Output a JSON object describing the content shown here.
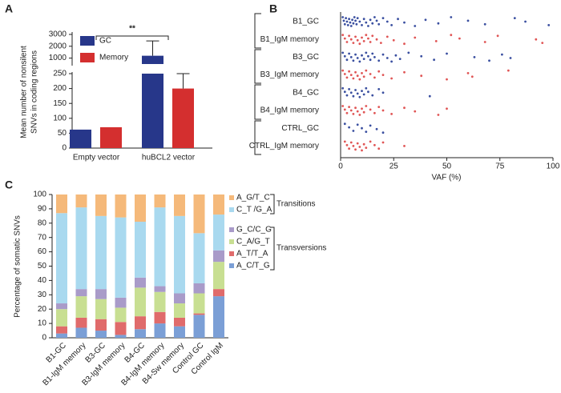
{
  "chart_data": [
    {
      "type": "broken-bar",
      "panel": "A",
      "ylabel": [
        "Mean number of nonsilent",
        "SNVs in coding regions"
      ],
      "categories": [
        "Empty vector",
        "huBCL2 vector"
      ],
      "series": [
        {
          "name": "GC",
          "color": "#27378a",
          "values": [
            62,
            1200
          ],
          "errors": [
            null,
            1250
          ]
        },
        {
          "name": "Memory",
          "color": "#d42f2f",
          "values": [
            70,
            200
          ],
          "errors": [
            null,
            50
          ]
        }
      ],
      "ylim": [
        0,
        3000
      ],
      "ybreak": [
        250,
        500
      ],
      "yticks": [
        0,
        50,
        100,
        150,
        200,
        250,
        1000,
        2000,
        3000
      ],
      "annotation": "**"
    },
    {
      "type": "strip",
      "panel": "B",
      "xlabel": "VAF (%)",
      "categories": [
        "B1_GC",
        "B1_IgM memory",
        "B3_GC",
        "B3_IgM memory",
        "B4_GC",
        "B4_IgM memory",
        "CTRL_GC",
        "CTRL_IgM memory"
      ],
      "colors": [
        "#3a4fa0",
        "#e05555",
        "#3a4fa0",
        "#e05555",
        "#3a4fa0",
        "#e05555",
        "#3a4fa0",
        "#e05555"
      ],
      "values": [
        [
          1,
          1.5,
          2,
          2.5,
          3,
          3.5,
          4,
          4.5,
          5,
          5.5,
          6,
          6.5,
          7,
          7.5,
          8,
          9,
          10,
          11,
          12,
          13,
          14,
          15,
          16,
          17,
          18,
          20,
          22,
          24,
          27,
          30,
          35,
          40,
          46,
          52,
          60,
          68,
          82,
          87,
          98
        ],
        [
          1,
          2,
          3,
          4,
          5,
          6,
          7,
          8,
          9,
          10,
          11,
          12,
          13,
          14,
          15,
          17,
          19,
          22,
          25,
          30,
          35,
          45,
          52,
          56,
          68,
          74,
          92,
          95
        ],
        [
          1,
          2,
          3,
          4,
          5,
          6,
          7,
          8,
          9,
          10,
          11,
          12,
          13,
          14,
          15,
          16,
          18,
          20,
          22,
          24,
          26,
          28,
          32,
          38,
          44,
          50,
          63,
          70,
          76,
          80
        ],
        [
          1,
          2,
          3,
          4,
          5,
          6,
          7,
          8,
          9,
          10,
          11,
          12,
          14,
          16,
          18,
          20,
          24,
          30,
          38,
          50,
          60,
          62,
          79
        ],
        [
          1,
          2,
          3,
          4,
          5,
          6,
          7,
          8,
          9,
          10,
          11,
          12,
          13,
          15,
          18,
          20,
          42
        ],
        [
          1,
          2,
          3,
          4,
          5,
          6,
          7,
          8,
          9,
          10,
          11,
          12,
          14,
          16,
          18,
          20,
          24,
          30,
          35,
          46,
          50
        ],
        [
          2,
          4,
          6,
          8,
          10,
          12,
          14,
          17,
          20
        ],
        [
          2,
          3,
          4,
          5,
          6,
          7,
          8,
          9,
          10,
          11,
          12,
          14,
          16,
          18,
          20,
          30
        ]
      ],
      "xlim": [
        0,
        100
      ],
      "xticks": [
        0,
        25,
        50,
        75,
        100
      ]
    },
    {
      "type": "stacked-bar",
      "panel": "C",
      "ylabel": "Percentage of somatic SNVs",
      "categories": [
        "B1-GC",
        "B1-IgM memory",
        "B3-GC",
        "B3-IgM memory",
        "B4-GC",
        "B4-IgM memory",
        "B4-Sw memory",
        "Control GC",
        "Control IgM"
      ],
      "series": [
        {
          "name": "A_C/T_G",
          "color": "#7b9fd6",
          "values": [
            3,
            7,
            5,
            2,
            6,
            10,
            8,
            16,
            29
          ]
        },
        {
          "name": "A_T/T_A",
          "color": "#e06b6b",
          "values": [
            5,
            7,
            8,
            9,
            9,
            8,
            6,
            1,
            5
          ]
        },
        {
          "name": "C_A/G_T",
          "color": "#c8df92",
          "values": [
            12,
            15,
            14,
            10,
            20,
            14,
            10,
            14,
            19
          ]
        },
        {
          "name": "G_C/C_G",
          "color": "#a99bc9",
          "values": [
            4,
            5,
            7,
            7,
            7,
            4,
            7,
            7,
            8
          ]
        },
        {
          "name": "C_T /G_A",
          "color": "#a9d9ef",
          "values": [
            63,
            57,
            51,
            56,
            39,
            55,
            54,
            35,
            25
          ]
        },
        {
          "name": "A_G/T_C",
          "color": "#f5b97a",
          "values": [
            13,
            9,
            15,
            16,
            19,
            9,
            15,
            27,
            14
          ]
        }
      ],
      "groups": [
        "Transitions",
        "Transversions"
      ],
      "ylim": [
        0,
        100
      ],
      "yticks": [
        0,
        10,
        20,
        30,
        40,
        50,
        60,
        70,
        80,
        90,
        100
      ]
    }
  ]
}
